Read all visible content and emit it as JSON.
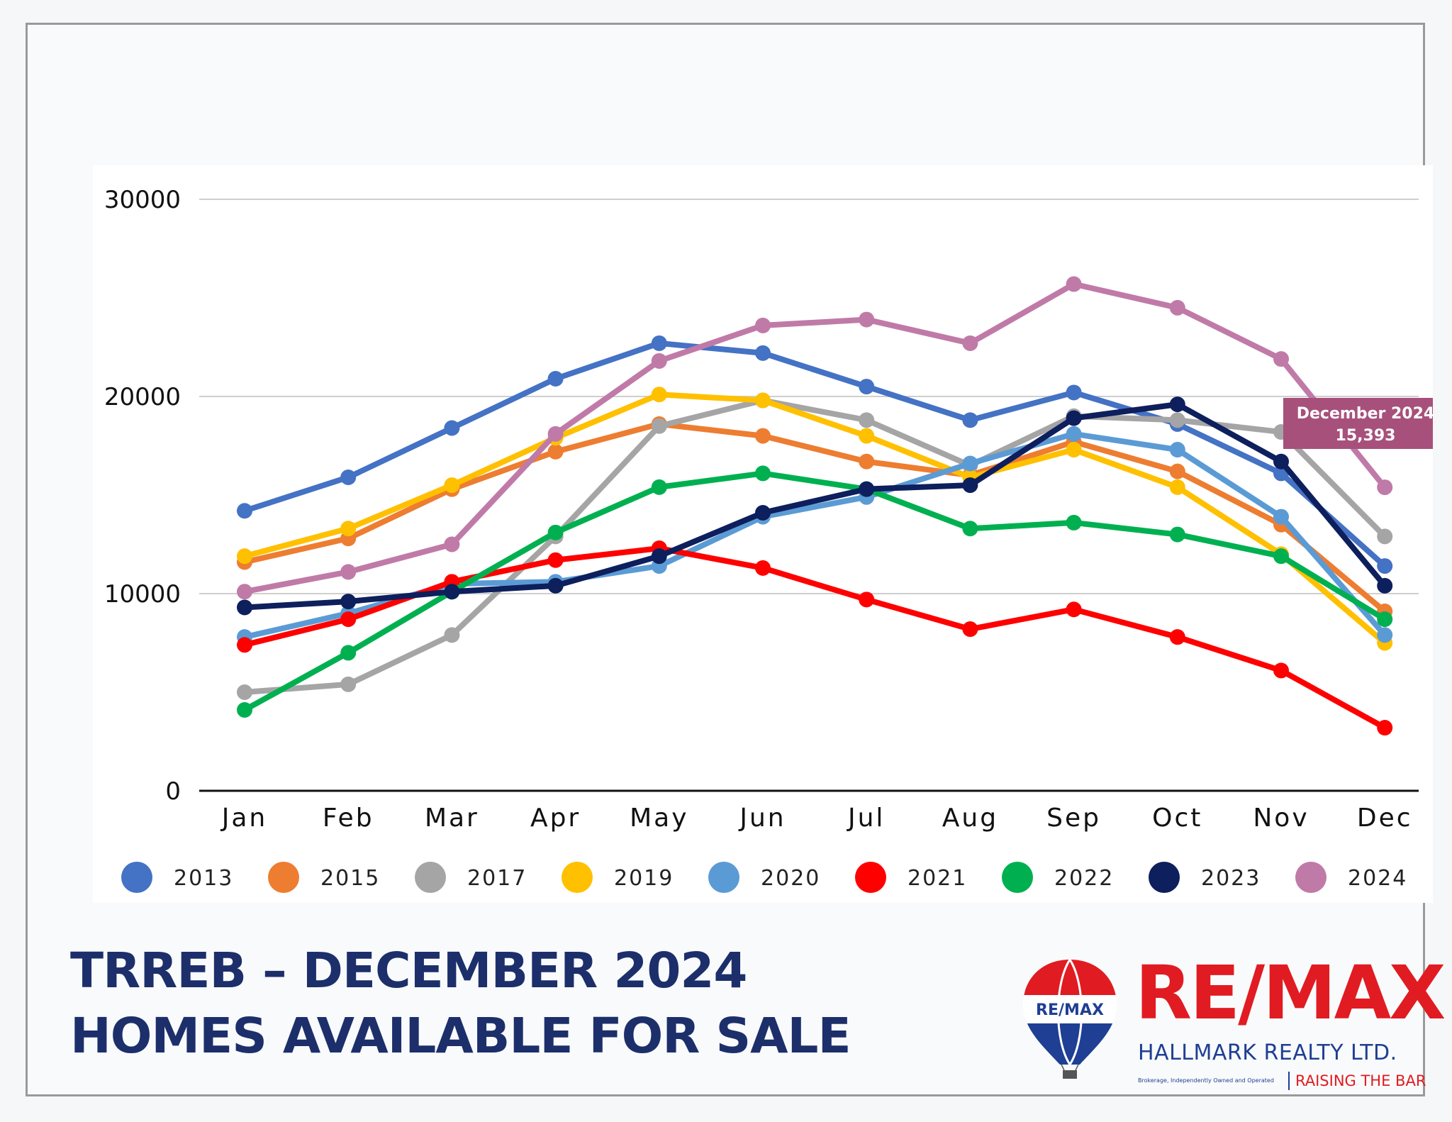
{
  "chart_data": {
    "type": "line",
    "categories": [
      "Jan",
      "Feb",
      "Mar",
      "Apr",
      "May",
      "Jun",
      "Jul",
      "Aug",
      "Sep",
      "Oct",
      "Nov",
      "Dec"
    ],
    "ylim": [
      0,
      30000
    ],
    "yticks": [
      0,
      10000,
      20000,
      30000
    ],
    "grid": true,
    "legend_position": "bottom",
    "series": [
      {
        "name": "2013",
        "color": "#4472c4",
        "values": [
          14200,
          15900,
          18400,
          20900,
          22700,
          22200,
          20500,
          18800,
          20200,
          18600,
          16100,
          11400
        ]
      },
      {
        "name": "2015",
        "color": "#ed7d31",
        "values": [
          11600,
          12800,
          15300,
          17200,
          18600,
          18000,
          16700,
          16000,
          17700,
          16200,
          13500,
          9100
        ]
      },
      {
        "name": "2017",
        "color": "#a5a5a5",
        "values": [
          5000,
          5400,
          7900,
          12900,
          18500,
          19800,
          18800,
          16500,
          19000,
          18800,
          18200,
          12900
        ]
      },
      {
        "name": "2019",
        "color": "#ffc000",
        "values": [
          11900,
          13300,
          15500,
          17900,
          20100,
          19800,
          18000,
          15900,
          17300,
          15400,
          12000,
          7500
        ]
      },
      {
        "name": "2020",
        "color": "#5b9bd5",
        "values": [
          7800,
          9000,
          10500,
          10600,
          11400,
          13900,
          14900,
          16600,
          18100,
          17300,
          13900,
          7900
        ]
      },
      {
        "name": "2021",
        "color": "#ff0000",
        "values": [
          7400,
          8700,
          10600,
          11700,
          12300,
          11300,
          9700,
          8200,
          9200,
          7800,
          6100,
          3200
        ]
      },
      {
        "name": "2022",
        "color": "#00b050",
        "values": [
          4100,
          7000,
          10100,
          13100,
          15400,
          16100,
          15300,
          13300,
          13600,
          13000,
          11900,
          8700
        ]
      },
      {
        "name": "2023",
        "color": "#0d1f5c",
        "values": [
          9300,
          9600,
          10100,
          10400,
          11900,
          14100,
          15300,
          15500,
          18900,
          19600,
          16700,
          10400
        ]
      },
      {
        "name": "2024",
        "color": "#c07aa8",
        "values": [
          10100,
          11100,
          12500,
          18100,
          21800,
          23600,
          23900,
          22700,
          25700,
          24500,
          21900,
          15393
        ]
      }
    ],
    "annotation": {
      "series": "2024",
      "category": "Dec",
      "line1": "December 2024",
      "line2": "15,393",
      "color": "#a7507b"
    }
  },
  "title": {
    "line1": "TRREB – DECEMBER 2024",
    "line2": "HOMES AVAILABLE FOR SALE"
  },
  "logo": {
    "balloon_text": "RE/MAX",
    "brand": "RE/MAX",
    "company": "HALLMARK REALTY LTD.",
    "tagline": "Brokerage, Independently Owned and Operated",
    "slogan": "RAISING THE BAR"
  }
}
